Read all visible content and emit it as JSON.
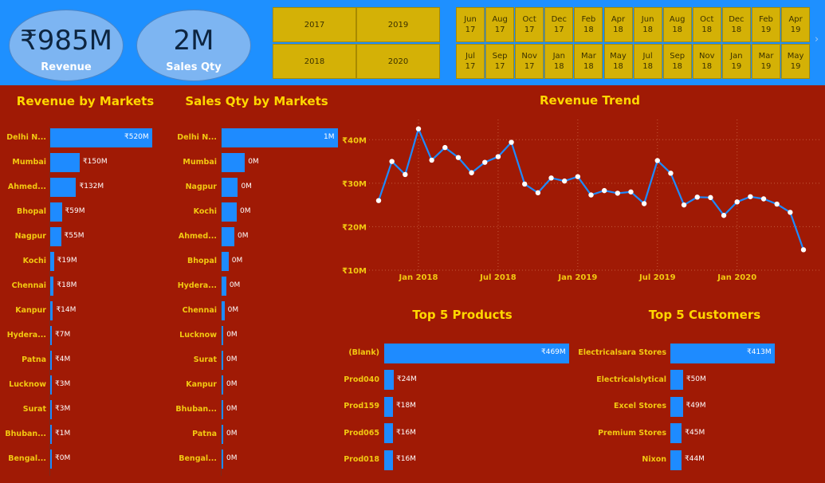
{
  "kpis": {
    "revenue": {
      "value": "₹985M",
      "label": "Revenue"
    },
    "sales_qty": {
      "value": "2M",
      "label": "Sales Qty"
    }
  },
  "year_slicer": [
    "2017",
    "2019",
    "2018",
    "2020"
  ],
  "month_slicer": [
    [
      "Jun",
      "17"
    ],
    [
      "Aug",
      "17"
    ],
    [
      "Oct",
      "17"
    ],
    [
      "Dec",
      "17"
    ],
    [
      "Feb",
      "18"
    ],
    [
      "Apr",
      "18"
    ],
    [
      "Jun",
      "18"
    ],
    [
      "Aug",
      "18"
    ],
    [
      "Oct",
      "18"
    ],
    [
      "Dec",
      "18"
    ],
    [
      "Feb",
      "19"
    ],
    [
      "Apr",
      "19"
    ],
    [
      "Jul",
      "17"
    ],
    [
      "Sep",
      "17"
    ],
    [
      "Nov",
      "17"
    ],
    [
      "Jan",
      "18"
    ],
    [
      "Mar",
      "18"
    ],
    [
      "May",
      "18"
    ],
    [
      "Jul",
      "18"
    ],
    [
      "Sep",
      "18"
    ],
    [
      "Nov",
      "18"
    ],
    [
      "Jan",
      "19"
    ],
    [
      "Mar",
      "19"
    ],
    [
      "May",
      "19"
    ]
  ],
  "colors": {
    "bar": "#1e8bff",
    "background": "#a01a05",
    "title": "#ffd700",
    "slicer": "#d4b106",
    "line": "#1e8bff"
  },
  "chart_data": [
    {
      "type": "bar",
      "orientation": "horizontal",
      "title": "Revenue by Markets",
      "categories": [
        "Delhi N...",
        "Mumbai",
        "Ahmed...",
        "Bhopal",
        "Nagpur",
        "Kochi",
        "Chennai",
        "Kanpur",
        "Hydera...",
        "Patna",
        "Lucknow",
        "Surat",
        "Bhuban...",
        "Bengal..."
      ],
      "values": [
        520,
        150,
        132,
        59,
        55,
        19,
        18,
        14,
        7,
        4,
        3,
        3,
        1,
        0
      ],
      "labels": [
        "₹520M",
        "₹150M",
        "₹132M",
        "₹59M",
        "₹55M",
        "₹19M",
        "₹18M",
        "₹14M",
        "₹7M",
        "₹4M",
        "₹3M",
        "₹3M",
        "₹1M",
        "₹0M"
      ],
      "unit": "₹M"
    },
    {
      "type": "bar",
      "orientation": "horizontal",
      "title": "Sales Qty by Markets",
      "categories": [
        "Delhi N...",
        "Mumbai",
        "Nagpur",
        "Kochi",
        "Ahmed...",
        "Bhopal",
        "Hydera...",
        "Chennai",
        "Lucknow",
        "Surat",
        "Kanpur",
        "Bhuban...",
        "Patna",
        "Bengal..."
      ],
      "values": [
        1.0,
        0.2,
        0.14,
        0.13,
        0.11,
        0.06,
        0.04,
        0.025,
        0.015,
        0.01,
        0.008,
        0.005,
        0.002,
        0.001
      ],
      "labels": [
        "1M",
        "0M",
        "0M",
        "0M",
        "0M",
        "0M",
        "0M",
        "0M",
        "0M",
        "0M",
        "0M",
        "0M",
        "0M",
        "0M"
      ],
      "unit": "M"
    },
    {
      "type": "line",
      "title": "Revenue Trend",
      "x": [
        "Oct 17",
        "Nov 17",
        "Dec 17",
        "Jan 18",
        "Feb 18",
        "Mar 18",
        "Apr 18",
        "May 18",
        "Jun 18",
        "Jul 18",
        "Aug 18",
        "Sep 18",
        "Oct 18",
        "Nov 18",
        "Dec 18",
        "Jan 19",
        "Feb 19",
        "Mar 19",
        "Apr 19",
        "May 19",
        "Jun 19",
        "Jul 19",
        "Aug 19",
        "Sep 19",
        "Oct 19",
        "Nov 19",
        "Dec 19",
        "Jan 20",
        "Feb 20",
        "Mar 20",
        "Apr 20",
        "May 20",
        "Jun 20"
      ],
      "values": [
        26,
        35,
        32,
        42.5,
        35.3,
        38.2,
        35.9,
        32.4,
        34.8,
        36.1,
        39.4,
        29.8,
        27.8,
        31.2,
        30.5,
        31.5,
        27.3,
        28.3,
        27.7,
        28,
        25.3,
        35.2,
        32.3,
        25,
        26.8,
        26.7,
        22.6,
        25.7,
        26.9,
        26.4,
        25.2,
        23.3,
        14.7
      ],
      "ytick_labels": [
        "₹10M",
        "₹20M",
        "₹30M",
        "₹40M"
      ],
      "ytick_values": [
        10,
        20,
        30,
        40
      ],
      "xtick_labels": [
        "Jan 2018",
        "Jul 2018",
        "Jan 2019",
        "Jul 2019",
        "Jan 2020"
      ],
      "xtick_index": [
        3,
        9,
        15,
        21,
        27
      ],
      "ylim": [
        10,
        45
      ],
      "unit": "₹M"
    },
    {
      "type": "bar",
      "orientation": "horizontal",
      "title": "Top 5 Products",
      "categories": [
        "(Blank)",
        "Prod040",
        "Prod159",
        "Prod065",
        "Prod018"
      ],
      "values": [
        469,
        24,
        18,
        16,
        16
      ],
      "labels": [
        "₹469M",
        "₹24M",
        "₹18M",
        "₹16M",
        "₹16M"
      ],
      "unit": "₹M"
    },
    {
      "type": "bar",
      "orientation": "horizontal",
      "title": "Top 5 Customers",
      "categories": [
        "Electricalsara Stores",
        "Electricalslytical",
        "Excel Stores",
        "Premium Stores",
        "Nixon"
      ],
      "values": [
        413,
        50,
        49,
        45,
        44
      ],
      "labels": [
        "₹413M",
        "₹50M",
        "₹49M",
        "₹45M",
        "₹44M"
      ],
      "unit": "₹M"
    }
  ]
}
